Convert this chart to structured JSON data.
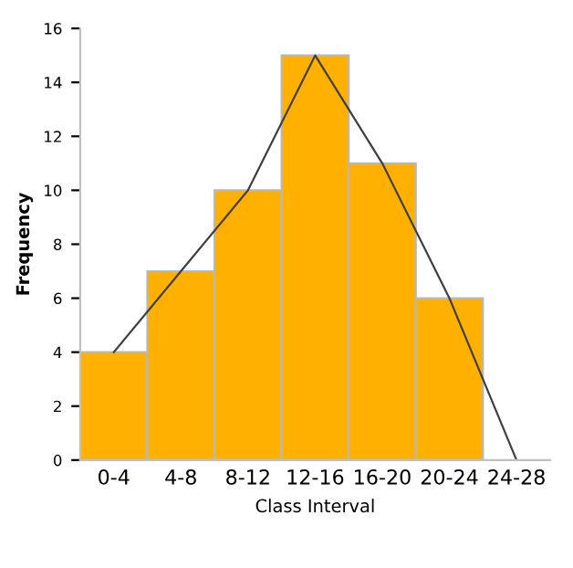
{
  "chart_data": {
    "type": "bar",
    "xlabel": "Class Interval",
    "ylabel": "Frequency",
    "categories": [
      "0-4",
      "4-8",
      "8-12",
      "12-16",
      "16-20",
      "20-24",
      "24-28"
    ],
    "series": [
      {
        "color": "#ffb000",
        "values": [
          4,
          7,
          10,
          15,
          11,
          6,
          null
        ]
      },
      {
        "type": "line",
        "color": "#404040",
        "values": [
          4,
          7,
          10,
          15,
          11,
          6,
          0
        ]
      }
    ],
    "ylim": [
      0,
      16
    ],
    "yticks": [
      0,
      2,
      4,
      6,
      8,
      10,
      12,
      14,
      16
    ],
    "grid": false,
    "legend": false
  }
}
